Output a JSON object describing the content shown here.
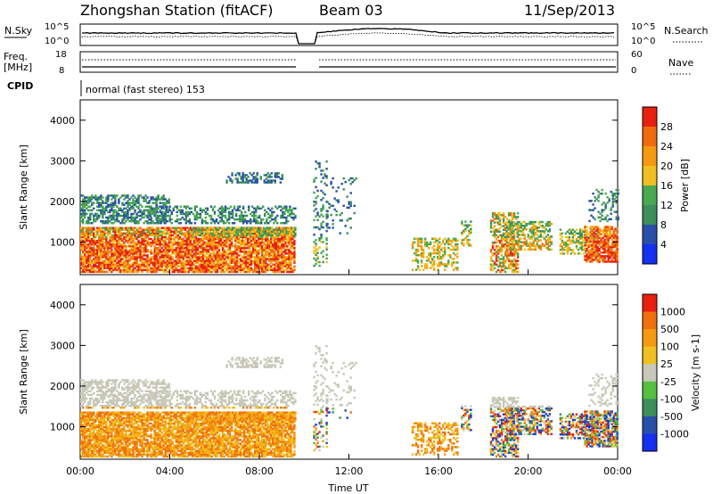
{
  "header": {
    "station": "Zhongshan Station (fitACF)",
    "beam": "Beam 03",
    "date": "11/Sep/2013"
  },
  "colors": {
    "power_scale": [
      "#1530f0",
      "#2a4fa8",
      "#3c8f5a",
      "#49a850",
      "#f0c020",
      "#f59a10",
      "#f06a10",
      "#e82010"
    ],
    "velocity_scale": [
      "#1530f0",
      "#2a4fa8",
      "#3c8f5a",
      "#56c040",
      "#c8c8b8",
      "#f0c020",
      "#f59a10",
      "#f07010",
      "#e82010"
    ]
  },
  "chart_data": [
    {
      "type": "line",
      "panel": "noise",
      "left_labels": [
        "N.Sky",
        "10^5",
        "10^0"
      ],
      "right_labels": [
        "10^5",
        "10^0",
        "N.Search"
      ],
      "series": [],
      "x_range": [
        "00:00",
        "00:00"
      ]
    },
    {
      "type": "line",
      "panel": "frequency",
      "left_labels": [
        "Freq.",
        "[MHz]",
        "18",
        "8"
      ],
      "right_labels": [
        "60",
        "0",
        "Nave"
      ],
      "series": []
    },
    {
      "type": "text",
      "panel": "cpid",
      "label": "CPID",
      "value": "normal (fast stereo) 153"
    },
    {
      "type": "heatmap",
      "panel": "power",
      "ylabel": "Slant Range [km]",
      "yticks": [
        1000,
        2000,
        3000,
        4000
      ],
      "ylim": [
        200,
        4500
      ],
      "colorbar_label": "Power [dB]",
      "colorbar_ticks": [
        "4",
        "8",
        "12",
        "16",
        "20",
        "24",
        "28"
      ],
      "xticks": [
        "00:00",
        "04:00",
        "08:00",
        "12:00",
        "16:00",
        "20:00",
        "00:00"
      ],
      "x_hours": [
        0,
        24
      ]
    },
    {
      "type": "heatmap",
      "panel": "velocity",
      "ylabel": "Slant Range [km]",
      "yticks": [
        1000,
        2000,
        3000,
        4000
      ],
      "ylim": [
        200,
        4500
      ],
      "colorbar_label": "Velocity [m s-1]",
      "colorbar_ticks": [
        "1000",
        "500",
        "100",
        "25",
        "-25",
        "-100",
        "-500",
        "-1000"
      ],
      "xticks": [
        "00:00",
        "04:00",
        "08:00",
        "12:00",
        "16:00",
        "20:00",
        "00:00"
      ],
      "xlabel": "Time UT",
      "x_hours": [
        0,
        24
      ]
    }
  ]
}
